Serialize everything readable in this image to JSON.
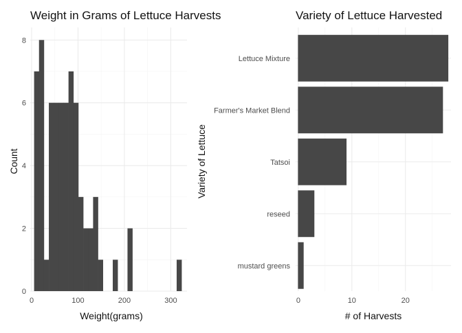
{
  "chart_data": [
    {
      "type": "bar",
      "subtype": "histogram",
      "title": "Weight in Grams of Lettuce Harvests",
      "xlabel": "Weight(grams)",
      "ylabel": "Count",
      "xlim": [
        -3,
        335
      ],
      "ylim": [
        0,
        8.4
      ],
      "x_ticks": [
        0,
        100,
        200,
        300
      ],
      "y_ticks": [
        0,
        2,
        4,
        6,
        8
      ],
      "bin_width": 10.6,
      "bin_centers": [
        10.6,
        21.2,
        31.8,
        42.4,
        53.0,
        63.6,
        74.2,
        84.8,
        95.4,
        106.0,
        116.6,
        127.2,
        137.8,
        148.4,
        159.0,
        169.6,
        180.2,
        190.8,
        201.4,
        212.0,
        222.6,
        233.2,
        243.8,
        254.4,
        265.0,
        275.6,
        286.2,
        296.8,
        307.4,
        318.0
      ],
      "counts": [
        7,
        8,
        1,
        6,
        6,
        6,
        6,
        7,
        6,
        3,
        2,
        2,
        3,
        1,
        0,
        0,
        1,
        0,
        0,
        2,
        0,
        0,
        0,
        0,
        0,
        0,
        0,
        0,
        0,
        1
      ],
      "bar_color": "#474747",
      "grid": true
    },
    {
      "type": "bar",
      "orientation": "horizontal",
      "title": "Variety of Lettuce Harvested",
      "xlabel": "# of Harvests",
      "ylabel": "Variety of Lettuce",
      "categories": [
        "Lettuce Mixture",
        "Farmer's Market Blend",
        "Tatsoi",
        "reseed",
        "mustard greens"
      ],
      "values": [
        28,
        27,
        9,
        3,
        1
      ],
      "xlim": [
        -0.5,
        28.5
      ],
      "x_ticks": [
        0,
        10,
        20
      ],
      "bar_color": "#474747",
      "grid": true
    }
  ]
}
